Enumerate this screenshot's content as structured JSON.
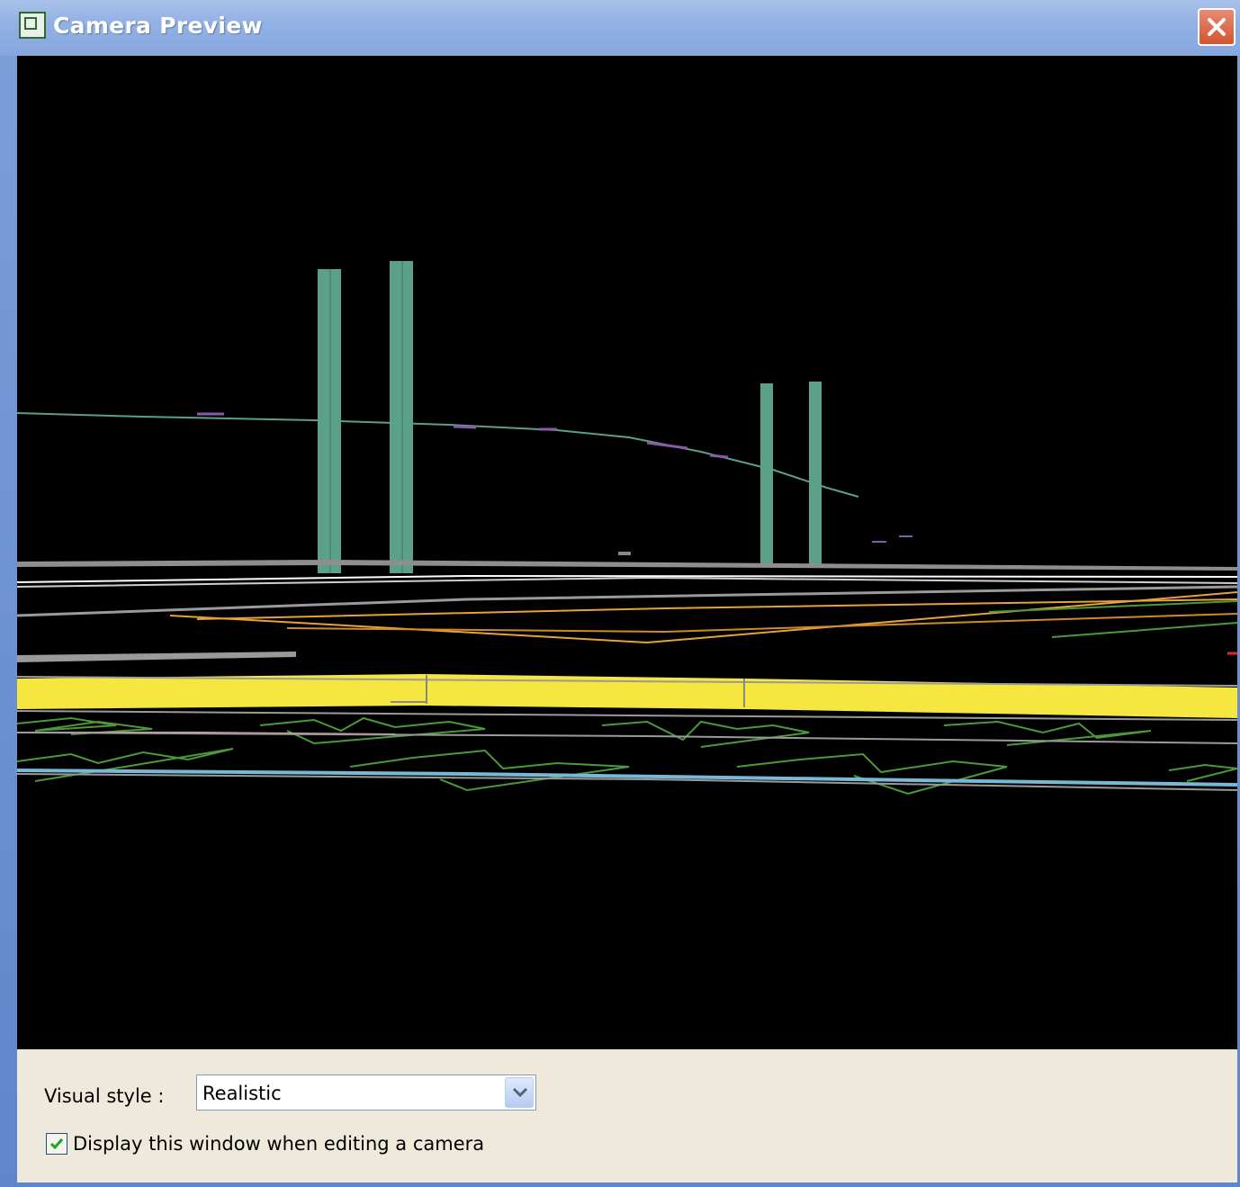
{
  "window": {
    "title": "Camera Preview",
    "app_icon": "autocad-app-icon",
    "close_icon": "close-icon"
  },
  "viewport": {
    "background": "#000000",
    "tower_color": "#5aa08a",
    "road_marking_color": "#f5e640",
    "curb_color": "#e8a23a",
    "vegetation_color": "#4a9a3a"
  },
  "options": {
    "visual_style_label": "Visual style :",
    "visual_style_value": "Realistic",
    "display_checkbox_label": "Display this window when editing a camera",
    "display_checkbox_checked": true
  },
  "colors": {
    "titlebar": "#93b1e4",
    "panel": "#eee9da",
    "close_button": "#d2552f"
  }
}
